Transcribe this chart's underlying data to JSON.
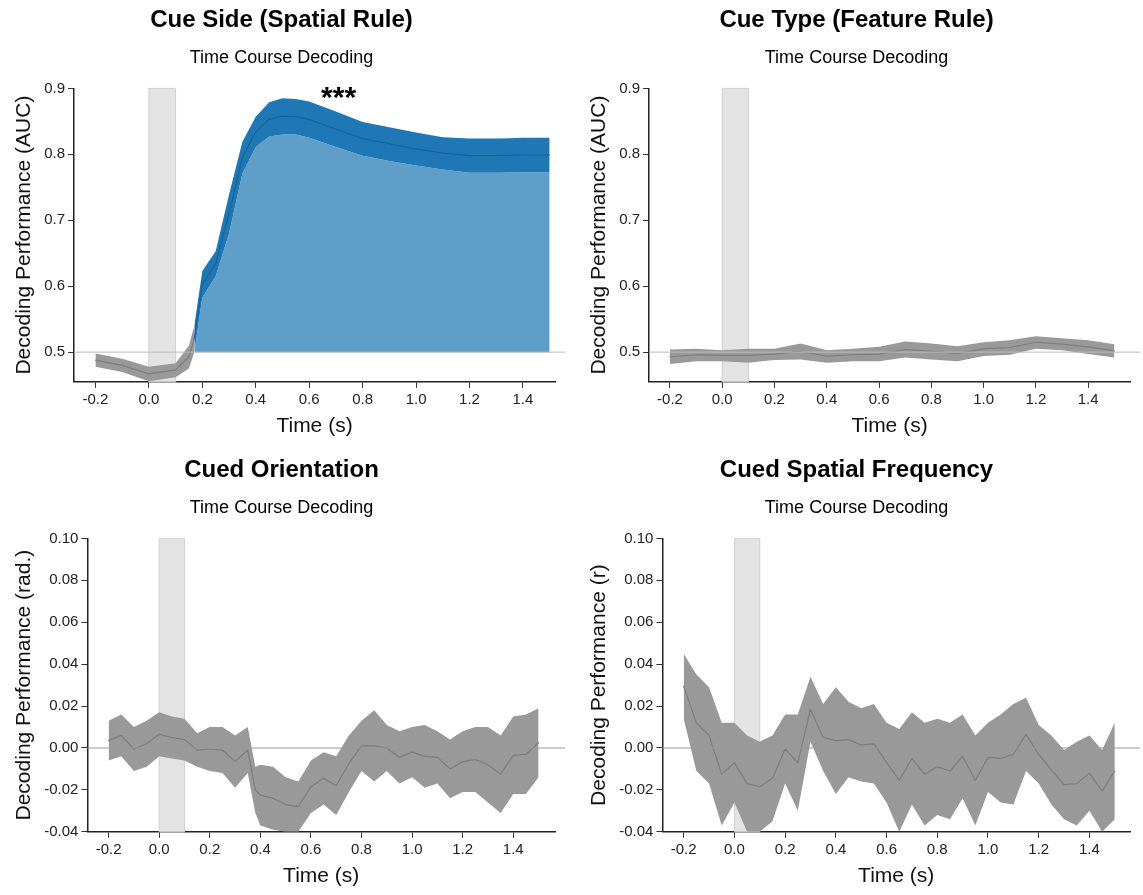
{
  "chart_data": [
    {
      "type": "line",
      "title": "Cue Side (Spatial Rule)",
      "subtitle": "Time Course Decoding",
      "xlabel": "Time (s)",
      "ylabel": "Decoding Performance (AUC)",
      "xlim": [
        -0.28,
        1.52
      ],
      "ylim": [
        0.455,
        0.9
      ],
      "xticks": [
        {
          "value": -0.2,
          "label": "-0.2"
        },
        {
          "value": 0,
          "label": "0.0"
        },
        {
          "value": 0.2,
          "label": "0.2"
        },
        {
          "value": 0.4,
          "label": "0.4"
        },
        {
          "value": 0.6,
          "label": "0.6"
        },
        {
          "value": 0.8,
          "label": "0.8"
        },
        {
          "value": 1,
          "label": "1.0"
        },
        {
          "value": 1.2,
          "label": "1.2"
        },
        {
          "value": 1.4,
          "label": "1.4"
        }
      ],
      "yticks": [
        0.5,
        0.6,
        0.7,
        0.8,
        0.9
      ],
      "series": [
        {
          "type": "line",
          "color": "#7d7d7d",
          "x": [
            -0.2,
            -0.1,
            0.0,
            0.1,
            0.15,
            0.17
          ],
          "values": [
            0.488,
            0.48,
            0.467,
            0.473,
            0.493,
            0.52
          ],
          "lower": [
            0.478,
            0.47,
            0.456,
            0.462,
            0.475,
            0.5
          ],
          "upper": [
            0.498,
            0.49,
            0.478,
            0.483,
            0.51,
            0.54
          ]
        },
        {
          "type": "line",
          "color": "#196294",
          "x": [
            0.17,
            0.2,
            0.25,
            0.3,
            0.35,
            0.4,
            0.45,
            0.5,
            0.55,
            0.6,
            0.7,
            0.8,
            0.9,
            1.0,
            1.1,
            1.2,
            1.3,
            1.4,
            1.5
          ],
          "values": [
            0.52,
            0.603,
            0.634,
            0.71,
            0.795,
            0.834,
            0.853,
            0.858,
            0.857,
            0.853,
            0.838,
            0.824,
            0.816,
            0.808,
            0.802,
            0.798,
            0.798,
            0.799,
            0.799
          ],
          "lower": [
            0.5,
            0.583,
            0.615,
            0.68,
            0.771,
            0.811,
            0.827,
            0.83,
            0.83,
            0.825,
            0.811,
            0.798,
            0.79,
            0.783,
            0.777,
            0.772,
            0.772,
            0.773,
            0.773
          ],
          "upper": [
            0.54,
            0.623,
            0.653,
            0.739,
            0.819,
            0.857,
            0.879,
            0.885,
            0.884,
            0.88,
            0.865,
            0.849,
            0.841,
            0.833,
            0.826,
            0.824,
            0.824,
            0.825,
            0.825
          ]
        },
        {
          "type": "area",
          "color": "#5f9ec9",
          "x": [
            0.17,
            0.2,
            0.25,
            0.3,
            0.35,
            0.4,
            0.45,
            0.5,
            0.55,
            0.6,
            0.7,
            0.8,
            0.9,
            1.0,
            1.1,
            1.2,
            1.3,
            1.4,
            1.5
          ],
          "values": [
            0.5,
            0.583,
            0.615,
            0.68,
            0.771,
            0.811,
            0.827,
            0.83,
            0.83,
            0.825,
            0.811,
            0.798,
            0.79,
            0.783,
            0.777,
            0.772,
            0.772,
            0.773,
            0.773
          ]
        }
      ],
      "ref_lines": [
        {
          "axis": "y",
          "value": 0.5,
          "color": "#bbbbbb"
        }
      ],
      "bands": [
        {
          "axis": "x",
          "from": 0,
          "to": 0.1,
          "color": "#e3e3e3"
        }
      ],
      "annotations": [
        "***"
      ]
    },
    {
      "type": "line",
      "title": "Cue Type (Feature Rule)",
      "subtitle": "Time Course Decoding",
      "xlabel": "Time (s)",
      "ylabel": "Decoding Performance (AUC)",
      "xlim": [
        -0.28,
        1.56
      ],
      "ylim": [
        0.455,
        0.9
      ],
      "xticks": [
        {
          "value": -0.2,
          "label": "-0.2"
        },
        {
          "value": 0,
          "label": "0.0"
        },
        {
          "value": 0.2,
          "label": "0.2"
        },
        {
          "value": 0.4,
          "label": "0.4"
        },
        {
          "value": 0.6,
          "label": "0.6"
        },
        {
          "value": 0.8,
          "label": "0.8"
        },
        {
          "value": 1,
          "label": "1.0"
        },
        {
          "value": 1.2,
          "label": "1.2"
        },
        {
          "value": 1.4,
          "label": "1.4"
        }
      ],
      "yticks": [
        0.5,
        0.6,
        0.7,
        0.8,
        0.9
      ],
      "series": [
        {
          "type": "line",
          "color": "#7d7d7d",
          "x": [
            -0.2,
            -0.1,
            0.0,
            0.1,
            0.2,
            0.3,
            0.4,
            0.5,
            0.6,
            0.7,
            0.8,
            0.9,
            1.0,
            1.1,
            1.2,
            1.3,
            1.4,
            1.5
          ],
          "values": [
            0.493,
            0.496,
            0.495,
            0.495,
            0.497,
            0.501,
            0.494,
            0.496,
            0.497,
            0.504,
            0.501,
            0.498,
            0.505,
            0.507,
            0.515,
            0.512,
            0.508,
            0.502
          ],
          "lower": [
            0.482,
            0.486,
            0.486,
            0.484,
            0.488,
            0.489,
            0.484,
            0.486,
            0.486,
            0.492,
            0.489,
            0.486,
            0.494,
            0.496,
            0.505,
            0.503,
            0.497,
            0.492
          ],
          "upper": [
            0.504,
            0.505,
            0.503,
            0.505,
            0.505,
            0.513,
            0.503,
            0.505,
            0.508,
            0.516,
            0.513,
            0.509,
            0.515,
            0.518,
            0.524,
            0.521,
            0.518,
            0.512
          ]
        }
      ],
      "ref_lines": [
        {
          "axis": "y",
          "value": 0.5,
          "color": "#bbbbbb"
        }
      ],
      "bands": [
        {
          "axis": "x",
          "from": 0,
          "to": 0.1,
          "color": "#e3e3e3"
        }
      ]
    },
    {
      "type": "line",
      "title": "Cued Orientation",
      "subtitle": "Time Course Decoding",
      "xlabel": "Time (s)",
      "ylabel": "Decoding Performance (rad.)",
      "xlim": [
        -0.284,
        1.565
      ],
      "ylim": [
        -0.04,
        0.1
      ],
      "xticks": [
        {
          "value": -0.2,
          "label": "-0.2"
        },
        {
          "value": 0,
          "label": "0.0"
        },
        {
          "value": 0.2,
          "label": "0.2"
        },
        {
          "value": 0.4,
          "label": "0.4"
        },
        {
          "value": 0.6,
          "label": "0.6"
        },
        {
          "value": 0.8,
          "label": "0.8"
        },
        {
          "value": 1,
          "label": "1.0"
        },
        {
          "value": 1.2,
          "label": "1.2"
        },
        {
          "value": 1.4,
          "label": "1.4"
        }
      ],
      "yticks": [
        {
          "value": -0.04,
          "label": "-0.04"
        },
        {
          "value": -0.02,
          "label": "-0.02"
        },
        {
          "value": 0,
          "label": "0.00"
        },
        {
          "value": 0.02,
          "label": "0.02"
        },
        {
          "value": 0.04,
          "label": "0.04"
        },
        {
          "value": 0.06,
          "label": "0.06"
        },
        {
          "value": 0.08,
          "label": "0.08"
        },
        {
          "value": 0.1,
          "label": "0.10"
        }
      ],
      "series": [
        {
          "type": "line",
          "color": "#7d7d7d",
          "x": [
            -0.2,
            -0.15,
            -0.1,
            -0.05,
            0,
            0.05,
            0.1,
            0.15,
            0.2,
            0.25,
            0.3,
            0.35,
            0.38,
            0.4,
            0.45,
            0.5,
            0.55,
            0.6,
            0.65,
            0.7,
            0.75,
            0.8,
            0.85,
            0.9,
            0.95,
            1.0,
            1.05,
            1.1,
            1.15,
            1.2,
            1.25,
            1.3,
            1.35,
            1.4,
            1.45,
            1.5
          ],
          "values": [
            0.0035,
            0.006,
            -0.0005,
            0.002,
            0.0065,
            0.005,
            0.004,
            -0.001,
            -0.0005,
            -0.001,
            -0.0065,
            -0.001,
            -0.02,
            -0.0225,
            -0.024,
            -0.027,
            -0.028,
            -0.0185,
            -0.0145,
            -0.018,
            -0.0075,
            0.001,
            0.001,
            0,
            -0.0045,
            -0.002,
            -0.004,
            -0.0045,
            -0.01,
            -0.0065,
            -0.0055,
            -0.008,
            -0.0125,
            -0.0035,
            -0.003,
            0.0025
          ],
          "lower": [
            -0.006,
            -0.004,
            -0.011,
            -0.009,
            -0.004,
            -0.005,
            -0.006,
            -0.009,
            -0.011,
            -0.012,
            -0.019,
            -0.012,
            -0.031,
            -0.037,
            -0.039,
            -0.04,
            -0.04,
            -0.031,
            -0.027,
            -0.032,
            -0.021,
            -0.011,
            -0.016,
            -0.011,
            -0.017,
            -0.014,
            -0.019,
            -0.017,
            -0.024,
            -0.021,
            -0.021,
            -0.026,
            -0.031,
            -0.022,
            -0.022,
            -0.014
          ],
          "upper": [
            0.013,
            0.016,
            0.01,
            0.013,
            0.017,
            0.015,
            0.014,
            0.007,
            0.01,
            0.01,
            0.006,
            0.01,
            -0.009,
            -0.008,
            -0.009,
            -0.014,
            -0.016,
            -0.006,
            -0.002,
            -0.004,
            0.006,
            0.013,
            0.018,
            0.011,
            0.008,
            0.01,
            0.011,
            0.008,
            0.004,
            0.008,
            0.01,
            0.01,
            0.006,
            0.015,
            0.016,
            0.019
          ]
        }
      ],
      "ref_lines": [
        {
          "axis": "y",
          "value": 0,
          "color": "#999999"
        }
      ],
      "bands": [
        {
          "axis": "x",
          "from": 0,
          "to": 0.1,
          "color": "#e3e3e3"
        }
      ]
    },
    {
      "type": "line",
      "title": "Cued Spatial Frequency",
      "subtitle": "Time Course Decoding",
      "xlabel": "Time (s)",
      "ylabel": "Decoding Performance (r)",
      "xlim": [
        -0.284,
        1.56
      ],
      "ylim": [
        -0.04,
        0.1
      ],
      "xticks": [
        {
          "value": -0.2,
          "label": "-0.2"
        },
        {
          "value": 0,
          "label": "0.0"
        },
        {
          "value": 0.2,
          "label": "0.2"
        },
        {
          "value": 0.4,
          "label": "0.4"
        },
        {
          "value": 0.6,
          "label": "0.6"
        },
        {
          "value": 0.8,
          "label": "0.8"
        },
        {
          "value": 1,
          "label": "1.0"
        },
        {
          "value": 1.2,
          "label": "1.2"
        },
        {
          "value": 1.4,
          "label": "1.4"
        }
      ],
      "yticks": [
        {
          "value": -0.04,
          "label": "-0.04"
        },
        {
          "value": -0.02,
          "label": "-0.02"
        },
        {
          "value": 0,
          "label": "0.00"
        },
        {
          "value": 0.02,
          "label": "0.02"
        },
        {
          "value": 0.04,
          "label": "0.04"
        },
        {
          "value": 0.06,
          "label": "0.06"
        },
        {
          "value": 0.08,
          "label": "0.08"
        },
        {
          "value": 0.1,
          "label": "0.10"
        }
      ],
      "series": [
        {
          "type": "line",
          "color": "#7d7d7d",
          "x": [
            -0.2,
            -0.15,
            -0.1,
            -0.05,
            0,
            0.05,
            0.1,
            0.15,
            0.2,
            0.25,
            0.3,
            0.35,
            0.4,
            0.45,
            0.5,
            0.55,
            0.6,
            0.65,
            0.7,
            0.75,
            0.8,
            0.85,
            0.9,
            0.95,
            1.0,
            1.05,
            1.1,
            1.15,
            1.2,
            1.25,
            1.3,
            1.35,
            1.4,
            1.45,
            1.5
          ],
          "values": [
            0.0295,
            0.012,
            0.006,
            -0.0125,
            -0.007,
            -0.017,
            -0.0185,
            -0.0145,
            -0.0005,
            -0.007,
            0.0185,
            0.005,
            0.0035,
            0.004,
            0.0015,
            0.002,
            -0.007,
            -0.0155,
            -0.005,
            -0.0125,
            -0.009,
            -0.011,
            -0.004,
            -0.0155,
            -0.0045,
            -0.005,
            -0.003,
            0.0065,
            -0.003,
            -0.0105,
            -0.0175,
            -0.017,
            -0.012,
            -0.0205,
            -0.011
          ],
          "lower": [
            0.014,
            -0.011,
            -0.017,
            -0.037,
            -0.026,
            -0.04,
            -0.04,
            -0.035,
            -0.017,
            -0.03,
            0.003,
            -0.011,
            -0.022,
            -0.014,
            -0.016,
            -0.017,
            -0.026,
            -0.04,
            -0.027,
            -0.037,
            -0.032,
            -0.034,
            -0.024,
            -0.037,
            -0.021,
            -0.026,
            -0.027,
            -0.011,
            -0.017,
            -0.027,
            -0.034,
            -0.037,
            -0.03,
            -0.04,
            -0.034
          ],
          "upper": [
            0.045,
            0.035,
            0.029,
            0.012,
            0.012,
            0.006,
            0.003,
            0.006,
            0.016,
            0.016,
            0.034,
            0.021,
            0.029,
            0.022,
            0.019,
            0.021,
            0.012,
            0.009,
            0.017,
            0.012,
            0.014,
            0.012,
            0.016,
            0.006,
            0.012,
            0.016,
            0.021,
            0.024,
            0.011,
            0.006,
            -0.001,
            0.003,
            0.006,
            -0.001,
            0.012
          ]
        }
      ],
      "ref_lines": [
        {
          "axis": "y",
          "value": 0,
          "color": "#999999"
        }
      ],
      "bands": [
        {
          "axis": "x",
          "from": 0,
          "to": 0.1,
          "color": "#e3e3e3"
        }
      ]
    }
  ]
}
